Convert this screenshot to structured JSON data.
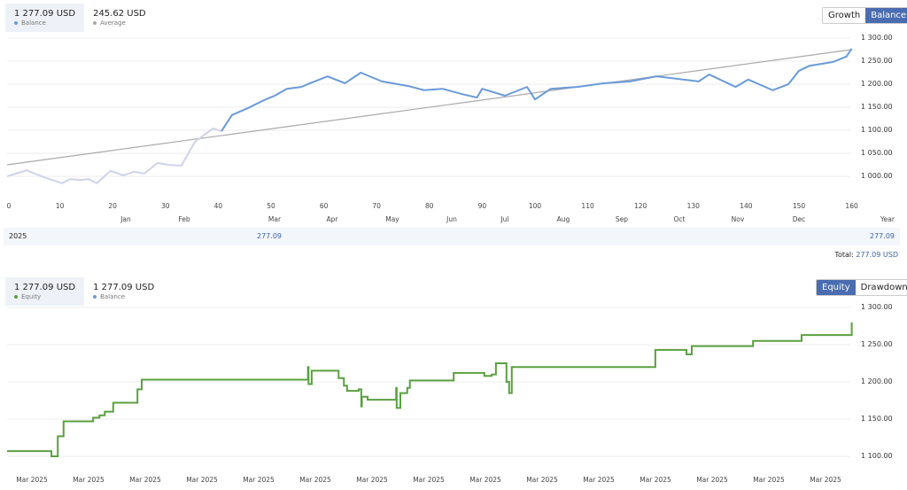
{
  "top": {
    "legend": [
      {
        "value": "1 277.09 USD",
        "label": "Balance",
        "color": "#6a9ad8"
      },
      {
        "value": "245.62 USD",
        "label": "Average",
        "color": "#aaaaaa"
      }
    ],
    "buttons": [
      {
        "label": "Growth",
        "active": false
      },
      {
        "label": "Balance",
        "active": true
      }
    ],
    "year_row": {
      "year": "2025",
      "mar": "277.09",
      "year_total": "277.09"
    },
    "total_label": "Total:",
    "total_value": "277.09 USD",
    "months": [
      "Jan",
      "Feb",
      "Mar",
      "Apr",
      "May",
      "Jun",
      "Jul",
      "Aug",
      "Sep",
      "Oct",
      "Nov",
      "Dec",
      "Year"
    ],
    "chart_data": {
      "type": "line",
      "xlim": [
        0,
        160
      ],
      "ylim": [
        975,
        1310
      ],
      "x_ticks": [
        "0",
        "10",
        "20",
        "30",
        "40",
        "50",
        "60",
        "70",
        "80",
        "90",
        "100",
        "110",
        "120",
        "130",
        "140",
        "150",
        "160"
      ],
      "y_ticks": [
        "1 300.00",
        "1 250.00",
        "1 200.00",
        "1 150.00",
        "1 100.00",
        "1 050.00",
        "1 000.00"
      ],
      "y_values": [
        1300,
        1250,
        1200,
        1150,
        1100,
        1050,
        1000
      ],
      "series": [
        {
          "name": "Balance",
          "color": "#6a9ad8",
          "points": [
            [
              0,
              1000
            ],
            [
              3.7,
              1013
            ],
            [
              7,
              998
            ],
            [
              10.4,
              985
            ],
            [
              12,
              994
            ],
            [
              14,
              992
            ],
            [
              15.4,
              994
            ],
            [
              17,
              985
            ],
            [
              19.6,
              1012
            ],
            [
              22,
              1002
            ],
            [
              24,
              1010
            ],
            [
              26,
              1006
            ],
            [
              28.5,
              1029
            ],
            [
              30.5,
              1025
            ],
            [
              33,
              1023
            ],
            [
              35.6,
              1075
            ],
            [
              39,
              1104
            ],
            [
              40.6,
              1098
            ],
            [
              42.6,
              1133
            ],
            [
              45.6,
              1148
            ],
            [
              49,
              1167
            ],
            [
              50.7,
              1175
            ],
            [
              53,
              1190
            ],
            [
              55.7,
              1194
            ],
            [
              57.4,
              1202
            ],
            [
              60.7,
              1217
            ],
            [
              64,
              1202
            ],
            [
              67,
              1225
            ],
            [
              71,
              1206
            ],
            [
              76,
              1196
            ],
            [
              79,
              1187
            ],
            [
              82.5,
              1190
            ],
            [
              86,
              1179
            ],
            [
              89,
              1171
            ],
            [
              90,
              1190
            ],
            [
              94.3,
              1175
            ],
            [
              98.5,
              1194
            ],
            [
              100,
              1167
            ],
            [
              103,
              1190
            ],
            [
              108,
              1194
            ],
            [
              113,
              1202
            ],
            [
              118,
              1206
            ],
            [
              123,
              1217
            ],
            [
              126,
              1213
            ],
            [
              131,
              1206
            ],
            [
              133,
              1221
            ],
            [
              138,
              1194
            ],
            [
              140.4,
              1210
            ],
            [
              145,
              1187
            ],
            [
              148,
              1200
            ],
            [
              150,
              1229
            ],
            [
              152,
              1240
            ],
            [
              156.4,
              1248
            ],
            [
              159,
              1260
            ],
            [
              160,
              1277
            ]
          ]
        },
        {
          "name": "Average",
          "color": "#aaaaaa",
          "points": [
            [
              0,
              1025
            ],
            [
              160,
              1275
            ]
          ]
        }
      ]
    }
  },
  "bottom": {
    "legend": [
      {
        "value": "1 277.09 USD",
        "label": "Equity",
        "color": "#5aa040"
      },
      {
        "value": "1 277.09 USD",
        "label": "Balance",
        "color": "#6a9ad8"
      }
    ],
    "buttons": [
      {
        "label": "Equity",
        "active": true
      },
      {
        "label": "Drawdown",
        "active": false
      }
    ],
    "chart_data": {
      "type": "line",
      "xlim": [
        0,
        160
      ],
      "ylim": [
        1090,
        1315
      ],
      "x_ticks": [
        "Mar 2025",
        "Mar 2025",
        "Mar 2025",
        "Mar 2025",
        "Mar 2025",
        "Mar 2025",
        "Mar 2025",
        "Mar 2025",
        "Mar 2025",
        "Mar 2025",
        "Mar 2025",
        "Mar 2025",
        "Mar 2025",
        "Mar 2025",
        "Mar 2025"
      ],
      "y_ticks": [
        "1 300.00",
        "1 250.00",
        "1 200.00",
        "1 150.00",
        "1 100.00"
      ],
      "y_values": [
        1300,
        1250,
        1200,
        1150,
        1100
      ],
      "series": [
        {
          "name": "Equity",
          "color": "#5aa040",
          "step": true,
          "points": [
            [
              0,
              1107
            ],
            [
              8.4,
              1100
            ],
            [
              9.6,
              1127
            ],
            [
              10.7,
              1147
            ],
            [
              16.3,
              1152
            ],
            [
              17.5,
              1155
            ],
            [
              18.5,
              1160
            ],
            [
              20.1,
              1172
            ],
            [
              24.7,
              1190
            ],
            [
              25.5,
              1203
            ],
            [
              56.5,
              1203
            ],
            [
              57,
              1220
            ],
            [
              57.1,
              1197
            ],
            [
              57.7,
              1215
            ],
            [
              62.4,
              1215
            ],
            [
              62.8,
              1205
            ],
            [
              63.8,
              1195
            ],
            [
              64.4,
              1188
            ],
            [
              66.6,
              1190
            ],
            [
              67.1,
              1167
            ],
            [
              67.2,
              1180
            ],
            [
              68.3,
              1176
            ],
            [
              73.3,
              1176
            ],
            [
              73.7,
              1192
            ],
            [
              73.8,
              1165
            ],
            [
              74.5,
              1185
            ],
            [
              75.8,
              1192
            ],
            [
              76.3,
              1202
            ],
            [
              84.2,
              1202
            ],
            [
              84.6,
              1212
            ],
            [
              90.1,
              1212
            ],
            [
              90.4,
              1208
            ],
            [
              91.8,
              1210
            ],
            [
              92.6,
              1225
            ],
            [
              94.3,
              1225
            ],
            [
              94.6,
              1200
            ],
            [
              95.1,
              1185
            ],
            [
              95.6,
              1220
            ],
            [
              122.5,
              1220
            ],
            [
              122.8,
              1243
            ],
            [
              128.4,
              1243
            ],
            [
              128.7,
              1237
            ],
            [
              129.7,
              1248
            ],
            [
              141,
              1248
            ],
            [
              141.3,
              1255
            ],
            [
              150.2,
              1255
            ],
            [
              150.5,
              1263
            ],
            [
              159.7,
              1263
            ],
            [
              160,
              1280
            ]
          ]
        }
      ]
    }
  }
}
